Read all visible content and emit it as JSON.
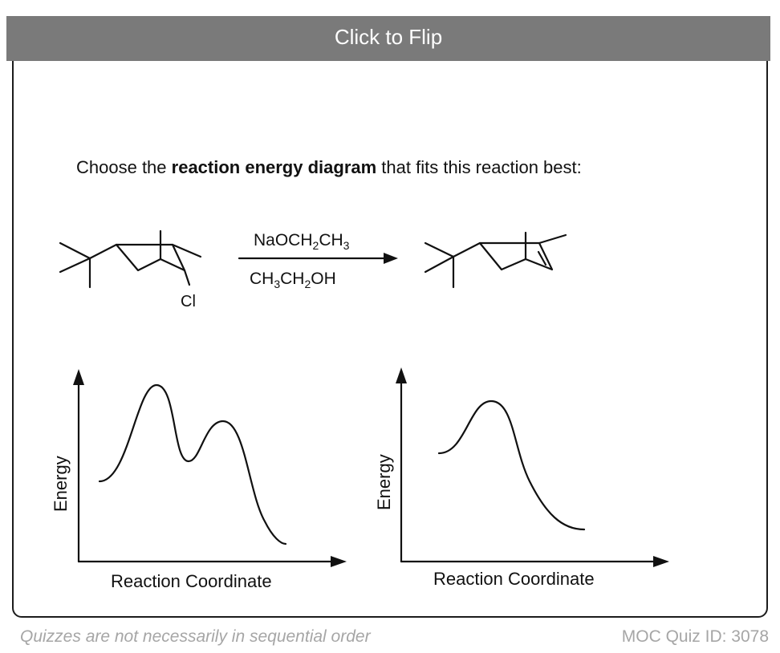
{
  "flip_bar": {
    "label": "Click to Flip"
  },
  "question": {
    "prefix": "Choose the ",
    "emphasis": "reaction energy diagram",
    "suffix": " that fits this reaction best:"
  },
  "reaction": {
    "reagent_top": {
      "a": "NaOCH",
      "sub1": "2",
      "b": "CH",
      "sub2": "3"
    },
    "reagent_bottom": {
      "a": "CH",
      "sub1": "3",
      "b": "CH",
      "sub2": "2",
      "c": "OH"
    },
    "leaving_group": "Cl"
  },
  "diagrams": [
    {
      "ylabel": "Energy",
      "xlabel": "Reaction Coordinate"
    },
    {
      "ylabel": "Energy",
      "xlabel": "Reaction Coordinate"
    }
  ],
  "footer": {
    "note": "Quizzes are not necessarily in sequential order",
    "quiz_id": "MOC Quiz ID: 3078"
  },
  "colors": {
    "flip_bar": "#7a7a7a",
    "footer_text": "#a6a6a6",
    "ink": "#111111"
  }
}
